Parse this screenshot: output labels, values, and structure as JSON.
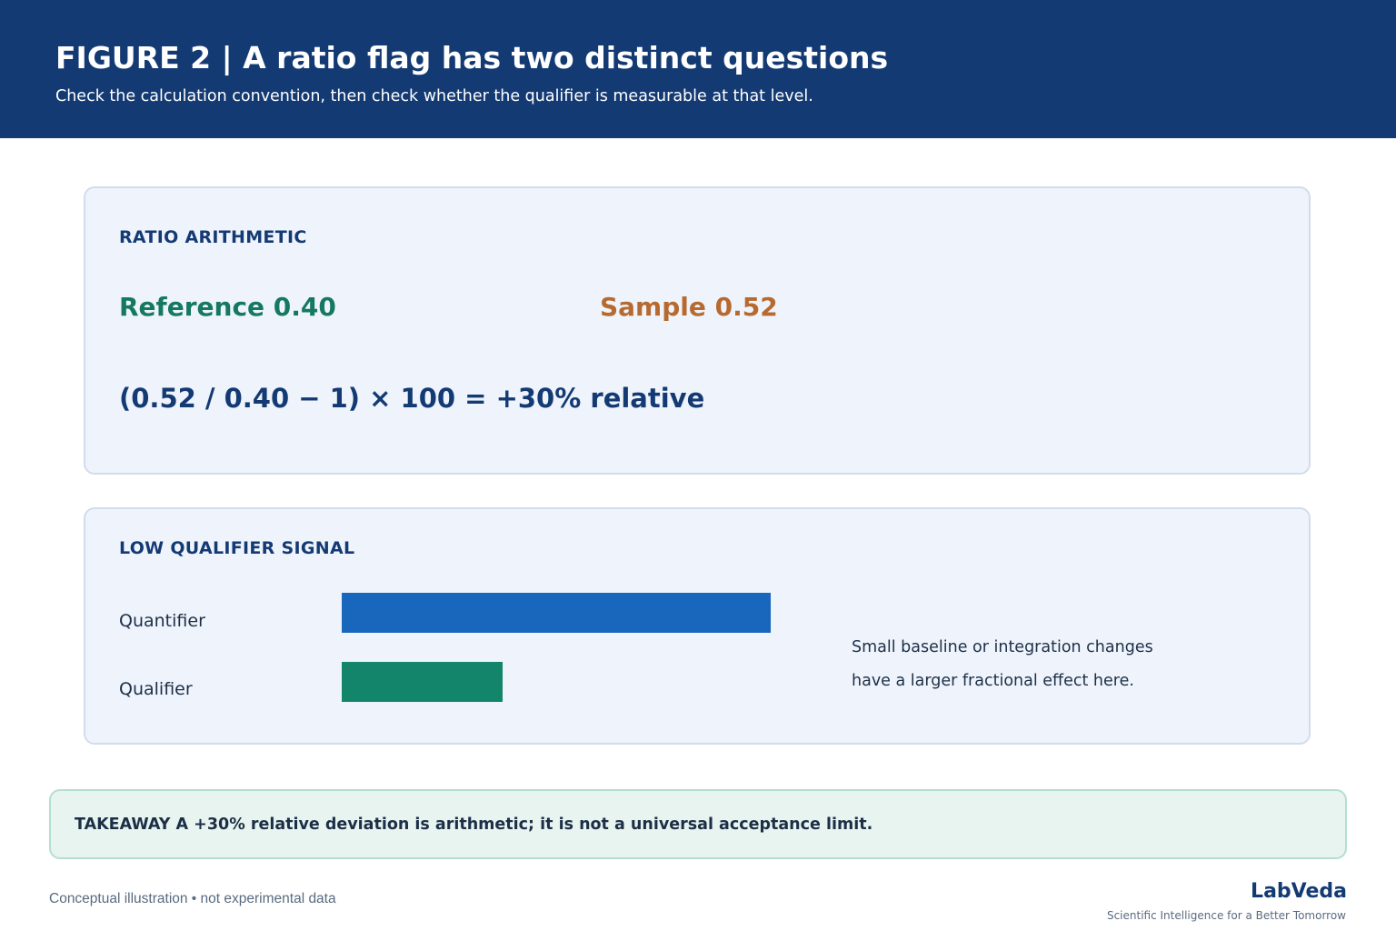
{
  "header": {
    "title": "FIGURE 2  |  A ratio flag has two distinct questions",
    "subtitle": "Check the calculation convention, then check whether the qualifier is measurable at that level."
  },
  "ratio_card": {
    "heading": "RATIO ARITHMETIC",
    "reference": "Reference  0.40",
    "sample": "Sample  0.52",
    "formula": "(0.52 / 0.40 − 1) × 100  =  +30% relative"
  },
  "signal_card": {
    "heading": "LOW QUALIFIER SIGNAL",
    "bars": [
      {
        "label": "Quantifier",
        "relative_value": 1.0,
        "color": "#1967bd"
      },
      {
        "label": "Qualifier",
        "relative_value": 0.375,
        "color": "#13856a"
      }
    ],
    "note_lines": [
      "Small baseline or integration changes",
      "have a larger fractional effect here."
    ]
  },
  "takeaway": {
    "text": "TAKEAWAY  A +30% relative deviation is arithmetic; it is not a universal acceptance limit."
  },
  "footer": {
    "note": "Conceptual illustration • not experimental data",
    "brand": "LabVeda",
    "tagline": "Scientific Intelligence for a Better Tomorrow"
  },
  "colors": {
    "header_bg": "#143a74",
    "reference": "#15795f",
    "sample": "#b76a2f",
    "card_bg": "#eff4fc",
    "takeaway_bg": "#e8f4ef"
  }
}
